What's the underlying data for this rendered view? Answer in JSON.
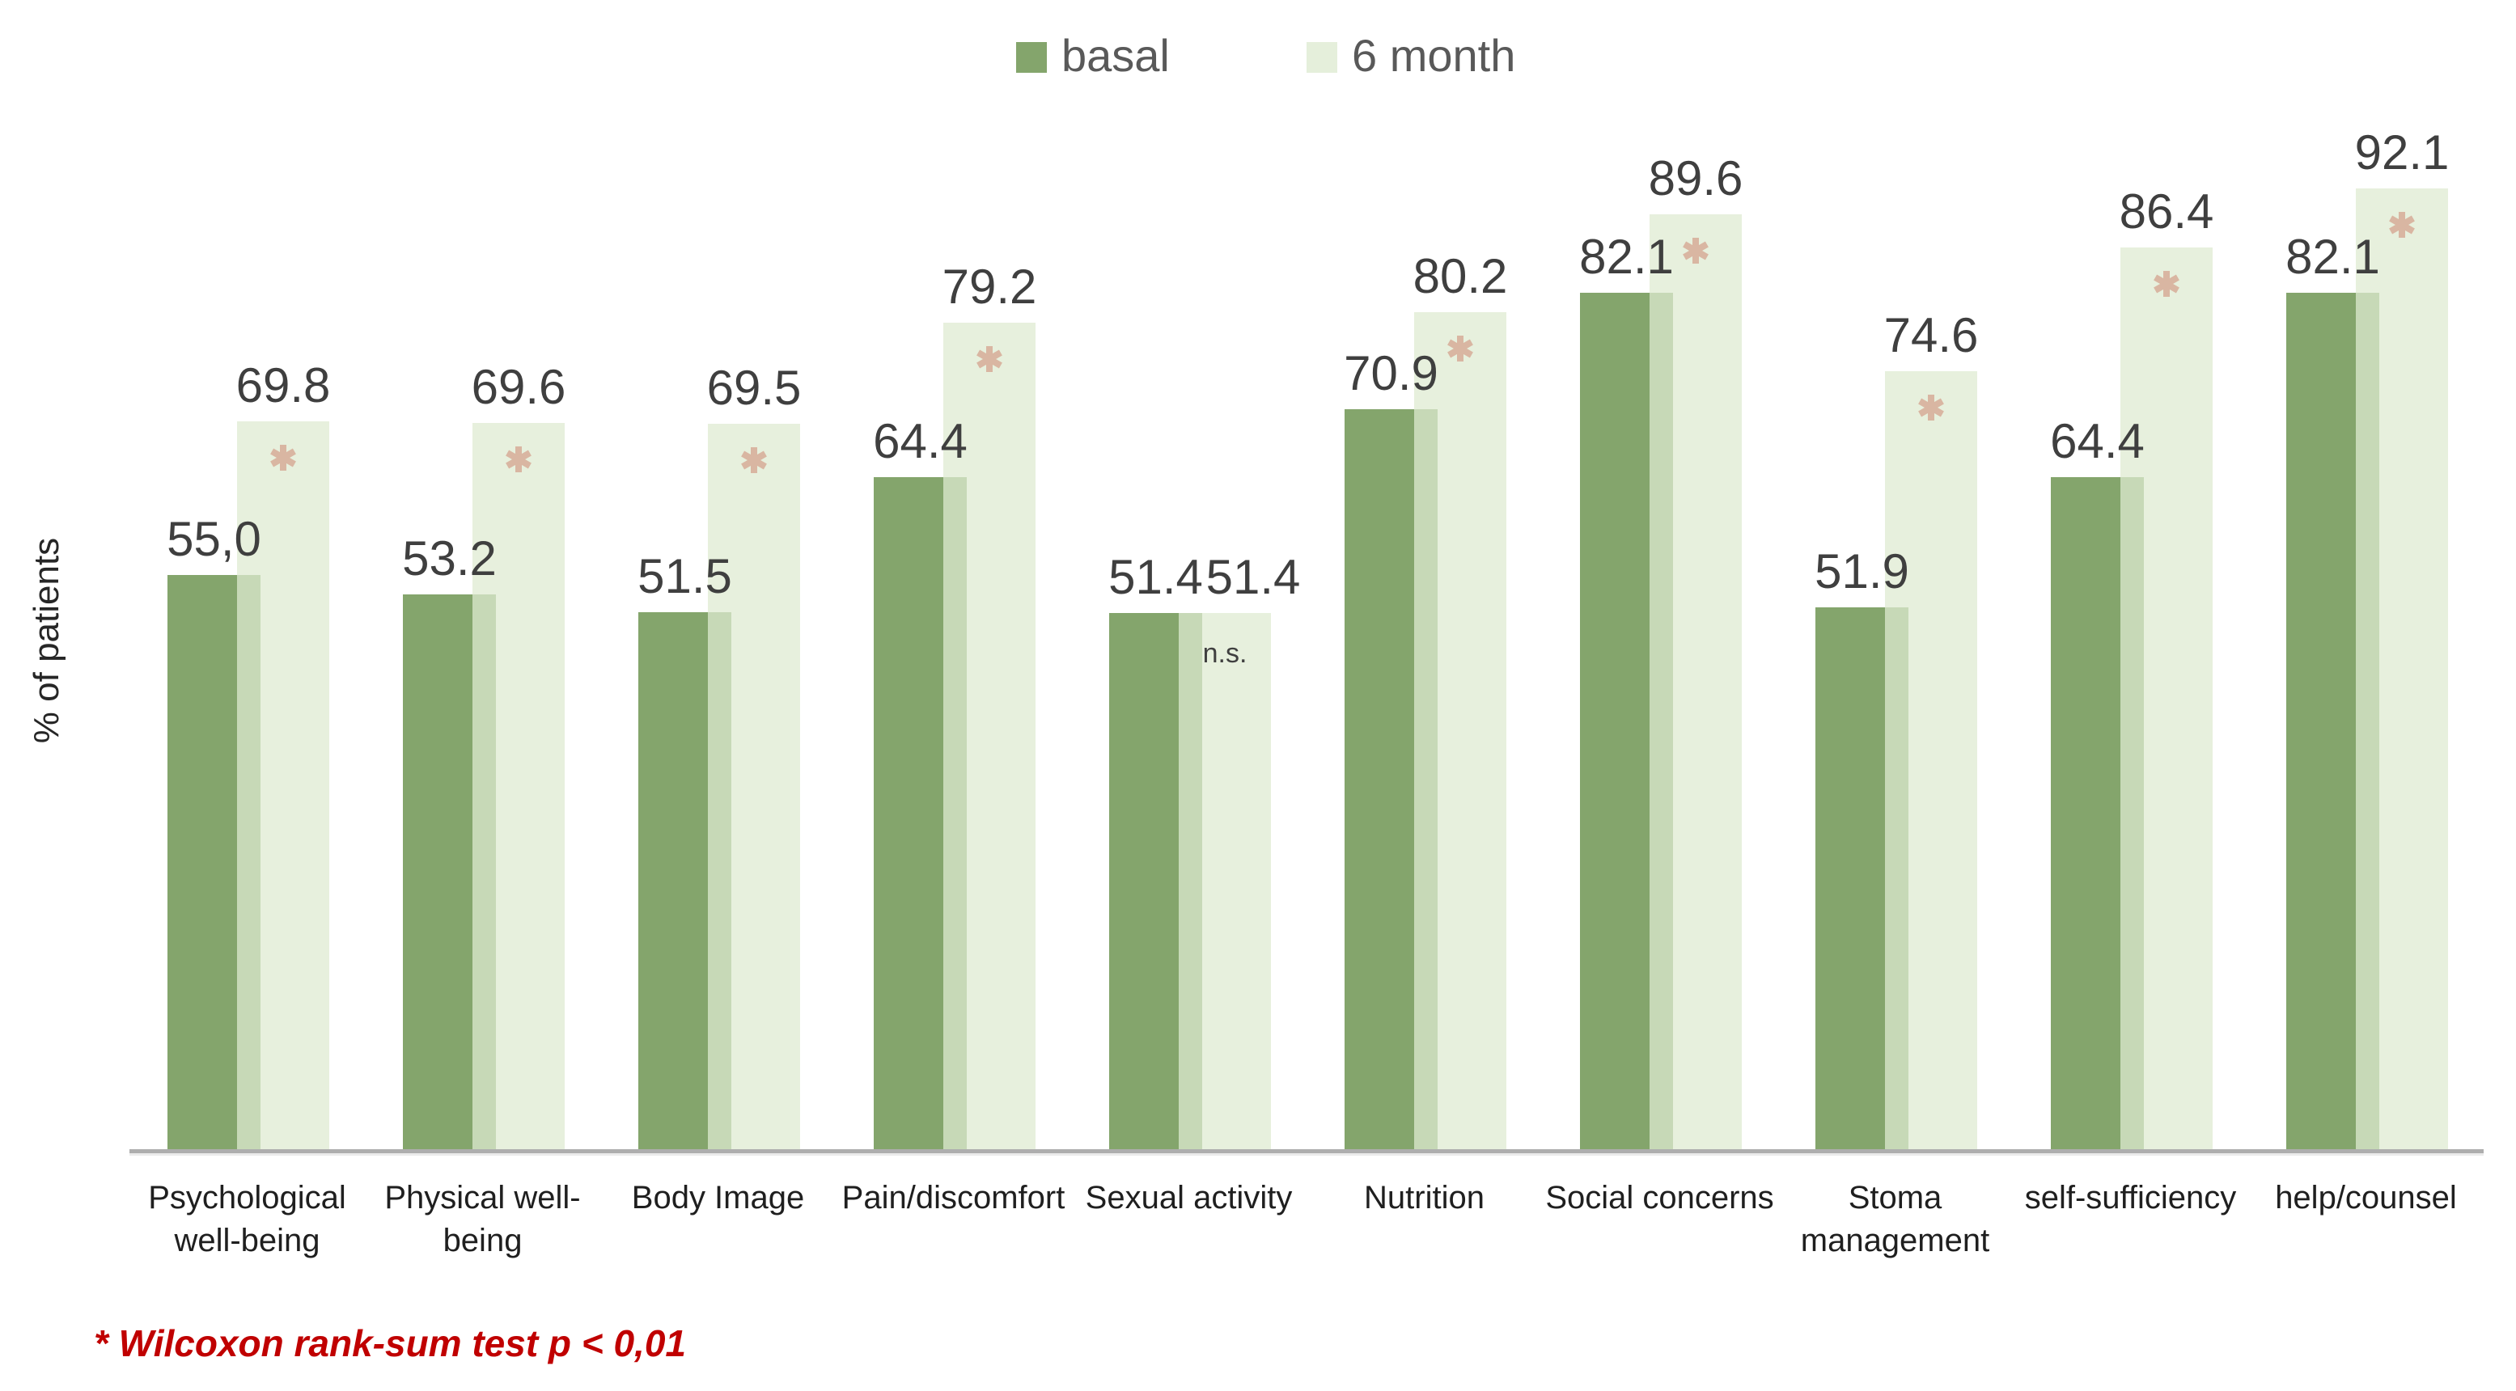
{
  "legend": {
    "items": [
      {
        "label": "basal",
        "color": "#84a56c"
      },
      {
        "label": "6 month",
        "color": "#e5efdb"
      }
    ]
  },
  "ylabel": "% of patients",
  "footnote": "* Wilcoxon rank-sum test p < 0,01",
  "colors": {
    "basal": "#84a56c",
    "six_month_solid": "#e7f0dd",
    "six_month_rgba": "rgba(223,235,209,0.74)",
    "overlap": "#c7d6b6",
    "asterisk": "#c9211b",
    "footnote_red": "#c00000",
    "axis": "#aeaeae",
    "value_text": "#3f3f3f",
    "category_text": "#1f1f1f",
    "legend_text": "#595959"
  },
  "chart_data": {
    "type": "bar",
    "title": "",
    "xlabel": "",
    "ylabel": "% of patients",
    "ylim": [
      0,
      100
    ],
    "grid": false,
    "legend_position": "top-center",
    "categories": [
      "Psychological well-being",
      "Physical well-being",
      "Body Image",
      "Pain/discomfort",
      "Sexual activity",
      "Nutrition",
      "Social concerns",
      "Stoma management",
      "self-sufficiency",
      "help/counsel"
    ],
    "category_lines": [
      [
        "Psychological",
        "well-being"
      ],
      [
        "Physical well-",
        "being"
      ],
      [
        "Body Image"
      ],
      [
        "Pain/discomfort"
      ],
      [
        "Sexual activity"
      ],
      [
        "Nutrition"
      ],
      [
        "Social concerns"
      ],
      [
        "Stoma",
        "management"
      ],
      [
        "self-sufficiency"
      ],
      [
        "help/counsel"
      ]
    ],
    "series": [
      {
        "name": "basal",
        "values": [
          55.0,
          53.2,
          51.5,
          64.4,
          51.4,
          70.9,
          82.1,
          51.9,
          64.4,
          82.1
        ],
        "labels": [
          "55,0",
          "53.2",
          "51.5",
          "64.4",
          "51.4",
          "70.9",
          "82.1",
          "51.9",
          "64.4",
          "82.1"
        ]
      },
      {
        "name": "6 month",
        "values": [
          69.8,
          69.6,
          69.5,
          79.2,
          51.4,
          80.2,
          89.6,
          74.6,
          86.4,
          92.1
        ],
        "labels": [
          "69.8",
          "69.6",
          "69.5",
          "79.2",
          "51.4",
          "80.2",
          "89.6",
          "74.6",
          "86.4",
          "92.1"
        ]
      }
    ],
    "significance": [
      "*",
      "*",
      "*",
      "*",
      "n.s.",
      "*",
      "*",
      "*",
      "*",
      "*"
    ],
    "significance_note": "* Wilcoxon rank-sum test p < 0,01"
  }
}
